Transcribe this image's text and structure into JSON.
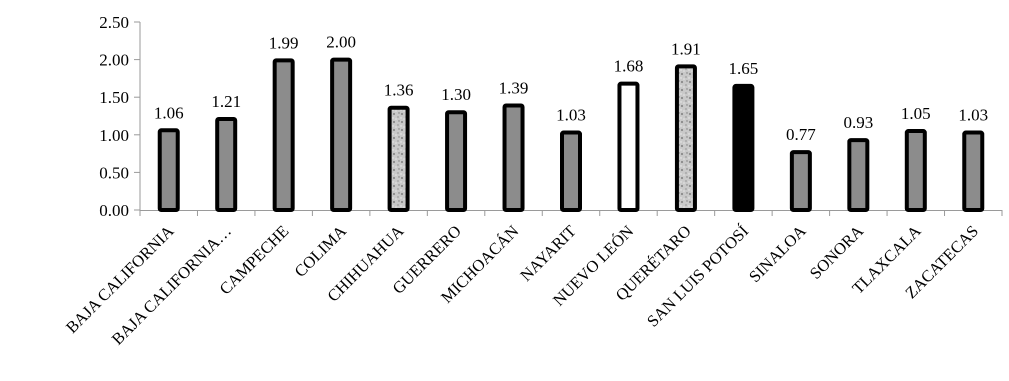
{
  "chart_data": {
    "type": "bar",
    "categories": [
      "BAJA CALIFORNIA",
      "BAJA CALIFORNIA…",
      "CAMPECHE",
      "COLIMA",
      "CHIHUAHUA",
      "GUERRERO",
      "MICHOACÁN",
      "NAYARIT",
      "NUEVO LEÓN",
      "QUERÉTARO",
      "SAN LUIS POTOSÍ",
      "SINALOA",
      "SONORA",
      "TLAXCALA",
      "ZACATECAS"
    ],
    "values": [
      1.06,
      1.21,
      1.99,
      2.0,
      1.36,
      1.3,
      1.39,
      1.03,
      1.68,
      1.91,
      1.65,
      0.77,
      0.93,
      1.05,
      1.03
    ],
    "data_labels": [
      "1.06",
      "1.21",
      "1.99",
      "2.00",
      "1.36",
      "1.30",
      "1.39",
      "1.03",
      "1.68",
      "1.91",
      "1.65",
      "0.77",
      "0.93",
      "1.05",
      "1.03"
    ],
    "fills": [
      "gray",
      "gray",
      "gray",
      "gray",
      "texture",
      "gray",
      "gray",
      "gray",
      "white",
      "texture",
      "black",
      "gray",
      "gray",
      "gray",
      "gray"
    ],
    "colors": {
      "gray": "#8c8c8c",
      "white": "#ffffff",
      "black": "#000000",
      "texture": "#c4c4c4",
      "border": "#000000",
      "axis": "#9a9a9a"
    },
    "ylim": [
      0,
      2.5
    ],
    "yticks": [
      0,
      0.5,
      1.0,
      1.5,
      2.0,
      2.5
    ],
    "ytick_labels": [
      "0.00",
      "0.50",
      "1.00",
      "1.50",
      "2.00",
      "2.50"
    ],
    "title": "",
    "xlabel": "",
    "ylabel": "",
    "grid": false,
    "legend": "none"
  }
}
